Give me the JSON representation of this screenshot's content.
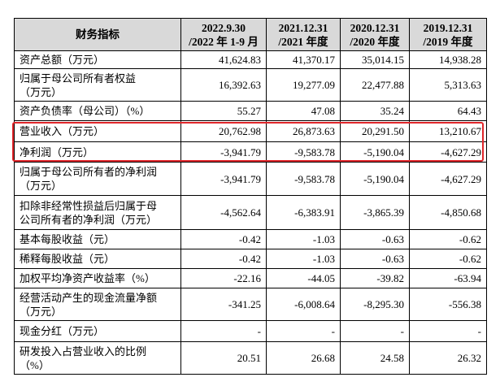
{
  "table": {
    "header": {
      "label": "财务指标",
      "columns": [
        [
          "2022.9.30",
          "/2022 年 1-9 月"
        ],
        [
          "2021.12.31",
          "/2021 年度"
        ],
        [
          "2020.12.31",
          "/2020 年度"
        ],
        [
          "2019.12.31",
          "/2019 年度"
        ]
      ]
    },
    "rows": [
      {
        "label": [
          "资产总额（万元）"
        ],
        "values": [
          "41,624.83",
          "41,370.17",
          "35,014.15",
          "14,938.28"
        ]
      },
      {
        "label": [
          "归属于母公司所有者权益",
          "（万元）"
        ],
        "values": [
          "16,392.63",
          "19,277.09",
          "22,477.88",
          "5,313.63"
        ]
      },
      {
        "label": [
          "资产负债率（母公司）（%）"
        ],
        "values": [
          "55.27",
          "47.08",
          "35.24",
          "64.43"
        ]
      },
      {
        "label": [
          "营业收入（万元）"
        ],
        "values": [
          "20,762.98",
          "26,873.63",
          "20,291.50",
          "13,210.67"
        ]
      },
      {
        "label": [
          "净利润（万元）"
        ],
        "values": [
          "-3,941.79",
          "-9,583.78",
          "-5,190.04",
          "-4,627.29"
        ]
      },
      {
        "label": [
          "归属于母公司所有者的净利润",
          "（万元）"
        ],
        "values": [
          "-3,941.79",
          "-9,583.78",
          "-5,190.04",
          "-4,627.29"
        ]
      },
      {
        "label": [
          "扣除非经常性损益后归属于母",
          "公司所有者的净利润（万元）"
        ],
        "values": [
          "-4,562.64",
          "-6,383.91",
          "-3,865.39",
          "-4,850.68"
        ]
      },
      {
        "label": [
          "基本每股收益（元）"
        ],
        "values": [
          "-0.42",
          "-1.03",
          "-0.63",
          "-0.62"
        ]
      },
      {
        "label": [
          "稀释每股收益（元）"
        ],
        "values": [
          "-0.42",
          "-1.03",
          "-0.63",
          "-0.62"
        ]
      },
      {
        "label": [
          "加权平均净资产收益率（%）"
        ],
        "values": [
          "-22.16",
          "-44.05",
          "-39.82",
          "-63.94"
        ]
      },
      {
        "label": [
          "经营活动产生的现金流量净额",
          "（万元）"
        ],
        "values": [
          "-341.25",
          "-6,008.64",
          "-8,295.30",
          "-556.38"
        ]
      },
      {
        "label": [
          "现金分红（万元）"
        ],
        "values": [
          "-",
          "-",
          "-",
          "-"
        ]
      },
      {
        "label": [
          "研发投入占营业收入的比例",
          "（%）"
        ],
        "values": [
          "20.51",
          "26.68",
          "24.58",
          "26.32"
        ]
      }
    ]
  }
}
